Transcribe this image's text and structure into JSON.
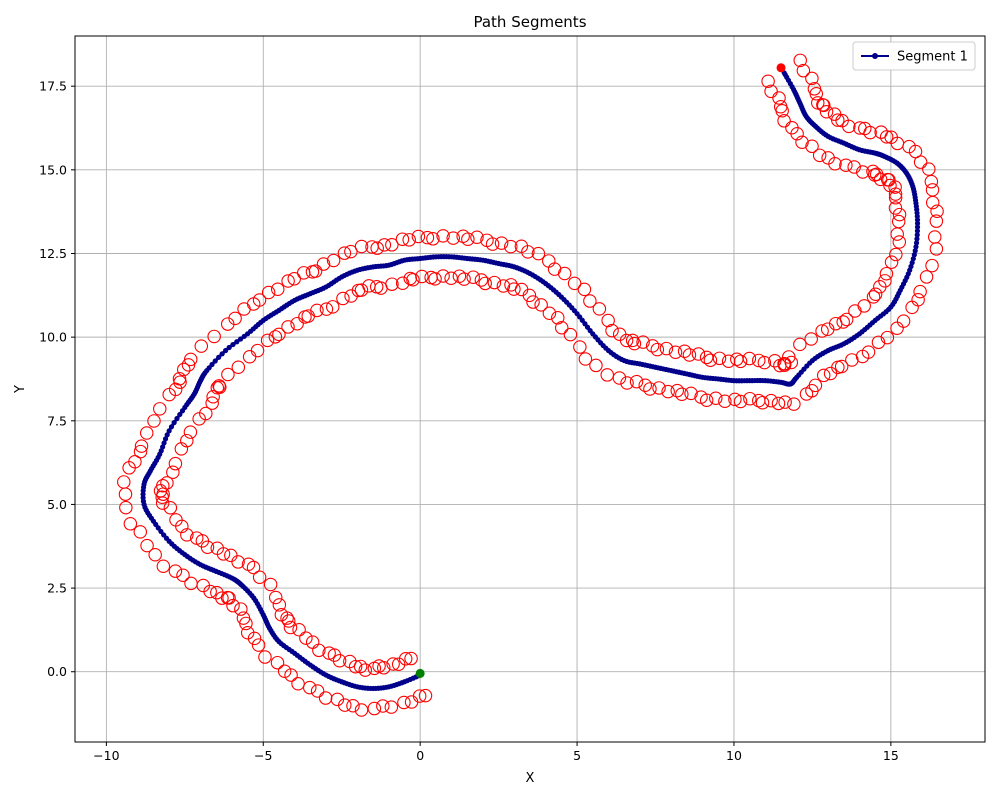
{
  "chart_data": {
    "type": "line",
    "title": "Path Segments",
    "xlabel": "X",
    "ylabel": "Y",
    "xlim": [
      -11,
      18
    ],
    "ylim": [
      -2.1,
      19.0
    ],
    "xticks": [
      -10,
      -5,
      0,
      5,
      10,
      15
    ],
    "xtick_labels": [
      "−10",
      "−5",
      "0",
      "5",
      "10",
      "15"
    ],
    "yticks": [
      0.0,
      2.5,
      5.0,
      7.5,
      10.0,
      12.5,
      15.0,
      17.5
    ],
    "ytick_labels": [
      "0.0",
      "2.5",
      "5.0",
      "7.5",
      "10.0",
      "12.5",
      "15.0",
      "17.5"
    ],
    "grid": true,
    "legend_position": "top-right",
    "colors": {
      "path": "#00008b",
      "markers": "#ff0000",
      "start": "#008000",
      "end": "#ff0000"
    },
    "series": [
      {
        "name": "Segment 1",
        "type": "line",
        "x": [
          0.0,
          -0.5,
          -1.0,
          -1.5,
          -2.0,
          -2.5,
          -3.0,
          -3.5,
          -4.0,
          -4.5,
          -4.8,
          -5.0,
          -5.3,
          -5.7,
          -6.0,
          -6.5,
          -7.0,
          -7.5,
          -8.0,
          -8.5,
          -8.8,
          -8.8,
          -8.6,
          -8.3,
          -8.0,
          -7.5,
          -7.2,
          -7.0,
          -6.8,
          -6.2,
          -5.5,
          -5.0,
          -4.5,
          -4.0,
          -3.5,
          -3.0,
          -2.5,
          -2.0,
          -1.5,
          -1.0,
          -0.5,
          0.0,
          0.5,
          1.0,
          1.5,
          2.0,
          2.5,
          3.0,
          3.5,
          4.0,
          4.5,
          5.0,
          5.5,
          6.0,
          6.5,
          7.0,
          7.5,
          8.0,
          8.5,
          9.0,
          9.5,
          10.0,
          10.5,
          11.0,
          11.5,
          11.8,
          12.0,
          12.5,
          13.0,
          13.5,
          14.0,
          14.5,
          15.0,
          15.3,
          15.6,
          15.8,
          15.85,
          15.8,
          15.7,
          15.5,
          15.2,
          14.8,
          14.5,
          14.0,
          13.5,
          13.0,
          12.6,
          12.3,
          12.1,
          11.9,
          11.6
        ],
        "y": [
          -0.1,
          -0.3,
          -0.45,
          -0.5,
          -0.45,
          -0.3,
          -0.1,
          0.2,
          0.55,
          0.9,
          1.3,
          1.7,
          2.2,
          2.6,
          2.8,
          3.0,
          3.2,
          3.5,
          3.9,
          4.5,
          5.0,
          5.6,
          6.0,
          6.5,
          7.2,
          7.9,
          8.3,
          8.7,
          9.0,
          9.6,
          10.1,
          10.5,
          10.8,
          11.1,
          11.3,
          11.5,
          11.8,
          12.0,
          12.1,
          12.15,
          12.3,
          12.35,
          12.4,
          12.4,
          12.35,
          12.3,
          12.2,
          12.1,
          11.9,
          11.6,
          11.2,
          10.7,
          10.1,
          9.6,
          9.3,
          9.2,
          9.1,
          9.0,
          8.9,
          8.8,
          8.75,
          8.7,
          8.7,
          8.7,
          8.65,
          8.6,
          8.8,
          9.3,
          9.6,
          9.8,
          10.1,
          10.5,
          10.9,
          11.4,
          12.0,
          12.7,
          13.4,
          14.0,
          14.5,
          14.9,
          15.2,
          15.4,
          15.5,
          15.6,
          15.8,
          16.0,
          16.3,
          16.6,
          17.0,
          17.4,
          17.9
        ]
      },
      {
        "name": "",
        "type": "scatter",
        "marker": "open-circle",
        "x": [
          0.0,
          -0.5,
          -1.0,
          -1.5,
          -2.0,
          -2.5,
          -3.0,
          -3.5,
          -4.0,
          -4.5,
          -4.8,
          -5.0,
          -5.3,
          -5.7,
          -6.0,
          -6.5,
          -7.0,
          -7.5,
          -8.0,
          -8.5,
          -8.8,
          -8.8,
          -8.6,
          -8.3,
          -8.0,
          -7.5,
          -7.2,
          -7.0,
          -6.8,
          -6.2,
          -5.5,
          -5.0,
          -4.5,
          -4.0,
          -3.5,
          -3.0,
          -2.5,
          -2.0,
          -1.5,
          -1.0,
          -0.5,
          0.0,
          0.5,
          1.0,
          1.5,
          2.0,
          2.5,
          3.0,
          3.5,
          4.0,
          4.5,
          5.0,
          5.5,
          6.0,
          6.5,
          7.0,
          7.5,
          8.0,
          8.5,
          9.0,
          9.5,
          10.0,
          10.5,
          11.0,
          11.5,
          11.8,
          12.0,
          12.5,
          13.0,
          13.5,
          14.0,
          14.5,
          15.0,
          15.3,
          15.6,
          15.8,
          15.85,
          15.8,
          15.7,
          15.5,
          15.2,
          14.8,
          14.5,
          14.0,
          13.5,
          13.0,
          12.6,
          12.3,
          12.1,
          11.9,
          11.6
        ],
        "y": [
          -0.1,
          -0.3,
          -0.45,
          -0.5,
          -0.45,
          -0.3,
          -0.1,
          0.2,
          0.55,
          0.9,
          1.3,
          1.7,
          2.2,
          2.6,
          2.8,
          3.0,
          3.2,
          3.5,
          3.9,
          4.5,
          5.0,
          5.6,
          6.0,
          6.5,
          7.2,
          7.9,
          8.3,
          8.7,
          9.0,
          9.6,
          10.1,
          10.5,
          10.8,
          11.1,
          11.3,
          11.5,
          11.8,
          12.0,
          12.1,
          12.15,
          12.3,
          12.35,
          12.4,
          12.4,
          12.35,
          12.3,
          12.2,
          12.1,
          11.9,
          11.6,
          11.2,
          10.7,
          10.1,
          9.6,
          9.3,
          9.2,
          9.1,
          9.0,
          8.9,
          8.8,
          8.75,
          8.7,
          8.7,
          8.7,
          8.65,
          8.6,
          8.8,
          9.3,
          9.6,
          9.8,
          10.1,
          10.5,
          10.9,
          11.4,
          12.0,
          12.7,
          13.4,
          14.0,
          14.5,
          14.9,
          15.2,
          15.4,
          15.5,
          15.6,
          15.8,
          16.0,
          16.3,
          16.6,
          17.0,
          17.4,
          17.9
        ],
        "offset_distance": 0.6
      }
    ],
    "start_point": {
      "x": 0.0,
      "y": -0.05
    },
    "end_point": {
      "x": 11.5,
      "y": 18.05
    }
  }
}
